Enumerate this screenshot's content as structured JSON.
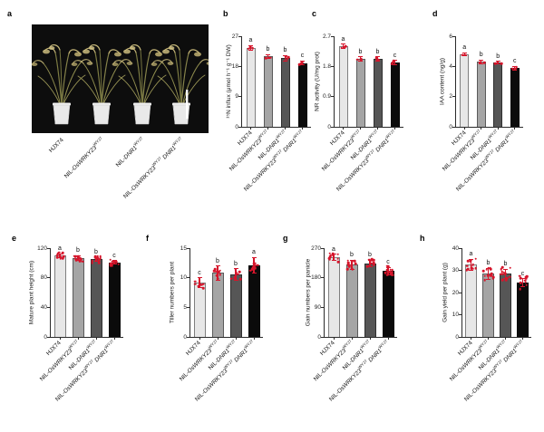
{
  "figure": {
    "panel_letters": [
      "a",
      "b",
      "c",
      "d",
      "e",
      "f",
      "g",
      "h"
    ],
    "bar_colors": [
      "#e7e7e7",
      "#a5a5a5",
      "#565656",
      "#0b0b0b"
    ],
    "accent_red": "#d6152b",
    "axis_color": "#2a2a2a",
    "photo_alt": "Four mature rice plants in white pots on a black background with a white scale bar",
    "categories": [
      [
        {
          "text": "HJX74"
        }
      ],
      [
        {
          "text": "NIL-"
        },
        {
          "text": "OsWRKY23",
          "italic": true
        },
        {
          "text": "WYJ7",
          "sup": true
        }
      ],
      [
        {
          "text": "NIL-"
        },
        {
          "text": "DNR1",
          "italic": true
        },
        {
          "text": "WYJ7",
          "sup": true
        }
      ],
      [
        {
          "text": "NIL-"
        },
        {
          "text": "OsWRKY23",
          "italic": true
        },
        {
          "text": "WYJ7",
          "sup": true
        },
        {
          "text": " "
        },
        {
          "text": "DNR1",
          "italic": true
        },
        {
          "text": "WYJ7",
          "sup": true
        }
      ]
    ]
  },
  "chart_data": [
    {
      "panel": "b",
      "type": "bar",
      "ylabel": "¹⁵N influx (μmol h⁻¹ g⁻¹ DW)",
      "ticks": [
        "0",
        "9",
        "18",
        "27"
      ],
      "ymax": 27,
      "categories": [
        "HJX74",
        "NIL-OsWRKY23^WYJ7",
        "NIL-DNR1^WYJ7",
        "NIL-OsWRKY23^WYJ7 DNR1^WYJ7"
      ],
      "values": [
        23.5,
        21.0,
        20.5,
        19.0
      ],
      "errors": [
        0.7,
        0.6,
        0.8,
        0.6
      ],
      "sig_letters": [
        "a",
        "b",
        "b",
        "c"
      ],
      "points_per_bar": 3,
      "point_spread": 0.5
    },
    {
      "panel": "c",
      "type": "bar",
      "ylabel": "NR activity (U/mg prot)",
      "ticks": [
        "0",
        "0.9",
        "1.8",
        "2.7"
      ],
      "ymax": 2.7,
      "categories": [
        "HJX74",
        "NIL-OsWRKY23^WYJ7",
        "NIL-DNR1^WYJ7",
        "NIL-OsWRKY23^WYJ7 DNR1^WYJ7"
      ],
      "values": [
        2.4,
        2.02,
        2.02,
        1.92
      ],
      "errors": [
        0.07,
        0.06,
        0.07,
        0.06
      ],
      "sig_letters": [
        "a",
        "b",
        "b",
        "c"
      ],
      "points_per_bar": 3,
      "point_spread": 0.05
    },
    {
      "panel": "d",
      "type": "bar",
      "ylabel": "IAA content (ng/g)",
      "ticks": [
        "0",
        "2",
        "4",
        "6"
      ],
      "ymax": 6,
      "categories": [
        "HJX74",
        "NIL-OsWRKY23^WYJ7",
        "NIL-DNR1^WYJ7",
        "NIL-OsWRKY23^WYJ7 DNR1^WYJ7"
      ],
      "values": [
        4.8,
        4.3,
        4.25,
        3.9
      ],
      "errors": [
        0.1,
        0.12,
        0.1,
        0.12
      ],
      "sig_letters": [
        "a",
        "b",
        "b",
        "c"
      ],
      "points_per_bar": 3,
      "point_spread": 0.08
    },
    {
      "panel": "e",
      "type": "bar",
      "ylabel": "Mature plant height (cm)",
      "ticks": [
        "0",
        "40",
        "80",
        "120"
      ],
      "ymax": 120,
      "categories": [
        "HJX74",
        "NIL-OsWRKY23^WYJ7",
        "NIL-DNR1^WYJ7",
        "NIL-OsWRKY23^WYJ7 DNR1^WYJ7"
      ],
      "values": [
        110,
        106.5,
        105,
        101
      ],
      "errors": [
        2.5,
        3.5,
        2.5,
        2
      ],
      "sig_letters": [
        "a",
        "b",
        "b",
        "c"
      ],
      "points_per_bar": 10,
      "point_spread": 5
    },
    {
      "panel": "f",
      "type": "bar",
      "ylabel": "Tiller numbers per plant",
      "ticks": [
        "0",
        "5",
        "10",
        "15"
      ],
      "ymax": 15,
      "categories": [
        "HJX74",
        "NIL-OsWRKY23^WYJ7",
        "NIL-DNR1^WYJ7",
        "NIL-OsWRKY23^WYJ7 DNR1^WYJ7"
      ],
      "values": [
        9.2,
        10.8,
        10.5,
        12.1
      ],
      "errors": [
        0.8,
        1.2,
        1.0,
        1.3
      ],
      "sig_letters": [
        "c",
        "b",
        "b",
        "a"
      ],
      "points_per_bar": 8,
      "point_spread": 1.0
    },
    {
      "panel": "g",
      "type": "bar",
      "ylabel": "Gain numbers per panicle",
      "ticks": [
        "0",
        "90",
        "180",
        "270"
      ],
      "ymax": 270,
      "categories": [
        "HJX74",
        "NIL-OsWRKY23^WYJ7",
        "NIL-DNR1^WYJ7",
        "NIL-OsWRKY23^WYJ7 DNR1^WYJ7"
      ],
      "values": [
        242,
        220,
        224,
        200
      ],
      "errors": [
        10,
        14,
        10,
        12
      ],
      "sig_letters": [
        "a",
        "b",
        "b",
        "c"
      ],
      "points_per_bar": 12,
      "point_spread": 16
    },
    {
      "panel": "h",
      "type": "bar",
      "ylabel": "Gain yield per plant (g)",
      "ticks": [
        "0",
        "10",
        "20",
        "30",
        "40"
      ],
      "ymax": 40,
      "categories": [
        "HJX74",
        "NIL-OsWRKY23^WYJ7",
        "NIL-DNR1^WYJ7",
        "NIL-OsWRKY23^WYJ7 DNR1^WYJ7"
      ],
      "values": [
        32.5,
        28.5,
        28.5,
        24.5
      ],
      "errors": [
        2.5,
        2.5,
        2,
        1.8
      ],
      "sig_letters": [
        "a",
        "b",
        "b",
        "c"
      ],
      "points_per_bar": 13,
      "point_spread": 3
    }
  ]
}
